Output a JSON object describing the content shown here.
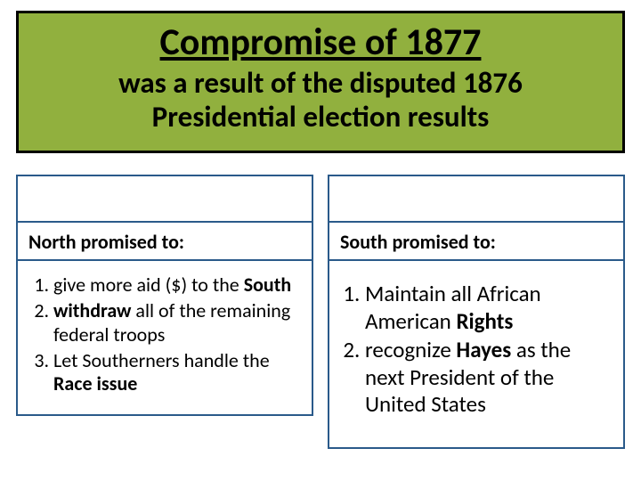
{
  "colors": {
    "header_bg": "#91b03e",
    "header_border": "#000000",
    "title_color": "#000000",
    "subtitle_color": "#000000",
    "col_border": "#2a5a8a",
    "spacer_bg": "#ffffff",
    "text_color": "#000000"
  },
  "fontsizes": {
    "title": 42,
    "subtitle": 33,
    "col_header": 22,
    "north_list": 22,
    "south_list": 25
  },
  "header": {
    "title": "Compromise of 1877",
    "subtitle_line1": "was a result of the disputed 1876",
    "subtitle_line2": "Presidential election results"
  },
  "north": {
    "label": "North promised to:",
    "items": [
      {
        "pre": "give more aid ($) to the ",
        "bold": "South",
        "post": ""
      },
      {
        "pre": "",
        "bold": "withdraw",
        "post": " all of the remaining federal troops"
      },
      {
        "pre": "Let Southerners handle the ",
        "bold": "Race issue",
        "post": ""
      }
    ]
  },
  "south": {
    "label": "South promised to:",
    "items": [
      {
        "pre": "Maintain all African American ",
        "bold": "Rights",
        "post": ""
      },
      {
        "pre": "recognize ",
        "bold": "Hayes",
        "post": " as the next President of the United States"
      }
    ]
  }
}
